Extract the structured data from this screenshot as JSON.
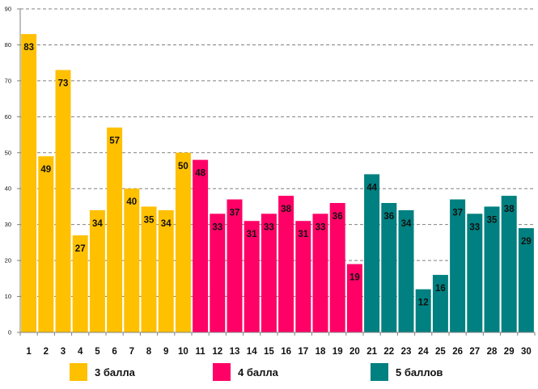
{
  "colors": {
    "series_3": "#FFC000",
    "series_4": "#FF0066",
    "series_5": "#008080",
    "grid": "#808080",
    "axis": "#808080",
    "text": "#111111"
  },
  "legend": {
    "items": [
      {
        "name": "3 балла",
        "color_key": "series_3"
      },
      {
        "name": "4 балла",
        "color_key": "series_4"
      },
      {
        "name": "5 баллов",
        "color_key": "series_5"
      }
    ]
  },
  "chart_data": {
    "type": "bar",
    "title": "",
    "xlabel": "",
    "ylabel": "",
    "ylim": [
      0,
      90
    ],
    "yticks": [
      0,
      10,
      20,
      30,
      40,
      50,
      60,
      70,
      80,
      90
    ],
    "grid": true,
    "legend_position": "bottom",
    "categories": [
      "1",
      "2",
      "3",
      "4",
      "5",
      "6",
      "7",
      "8",
      "9",
      "10",
      "11",
      "12",
      "13",
      "14",
      "15",
      "16",
      "17",
      "18",
      "19",
      "20",
      "21",
      "22",
      "23",
      "24",
      "25",
      "26",
      "27",
      "28",
      "29",
      "30"
    ],
    "series": [
      {
        "name": "3 балла",
        "color_key": "series_3",
        "values": [
          83,
          49,
          73,
          27,
          34,
          57,
          40,
          35,
          34,
          50,
          null,
          null,
          null,
          null,
          null,
          null,
          null,
          null,
          null,
          null,
          null,
          null,
          null,
          null,
          null,
          null,
          null,
          null,
          null,
          null
        ]
      },
      {
        "name": "4 балла",
        "color_key": "series_4",
        "values": [
          null,
          null,
          null,
          null,
          null,
          null,
          null,
          null,
          null,
          null,
          48,
          33,
          37,
          31,
          33,
          38,
          31,
          33,
          36,
          19,
          null,
          null,
          null,
          null,
          null,
          null,
          null,
          null,
          null,
          null
        ]
      },
      {
        "name": "5 баллов",
        "color_key": "series_5",
        "values": [
          null,
          null,
          null,
          null,
          null,
          null,
          null,
          null,
          null,
          null,
          null,
          null,
          null,
          null,
          null,
          null,
          null,
          null,
          null,
          null,
          44,
          36,
          34,
          12,
          16,
          37,
          33,
          35,
          38,
          29
        ]
      }
    ]
  }
}
